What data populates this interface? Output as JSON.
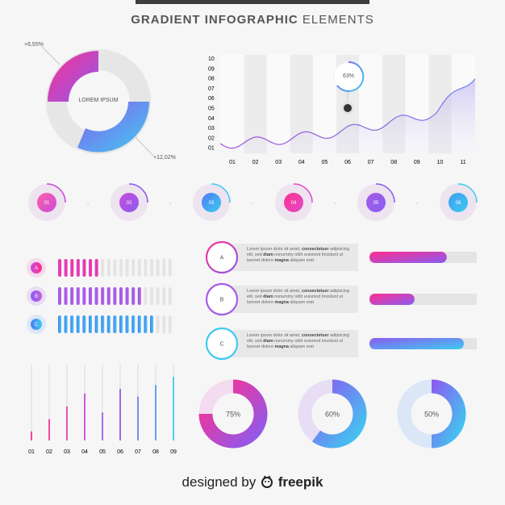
{
  "title": {
    "bold": "GRADIENT INFOGRAPHIC",
    "light": "ELEMENTS"
  },
  "donut": {
    "center_label": "LOREM IPSUM",
    "callout_top": "+6,55%",
    "callout_bottom": "+12,02%"
  },
  "area_chart": {
    "y_ticks": [
      "10",
      "09",
      "08",
      "07",
      "06",
      "05",
      "04",
      "03",
      "02",
      "01"
    ],
    "x_ticks": [
      "01",
      "02",
      "03",
      "04",
      "05",
      "06",
      "07",
      "08",
      "09",
      "10",
      "11"
    ],
    "bubble_label": "63%"
  },
  "steps": [
    "01",
    "02",
    "03",
    "04",
    "05",
    "06"
  ],
  "progress_rows": [
    {
      "label": "A",
      "filled": 7,
      "total": 19,
      "color_from": "#c84bd8",
      "color_to": "#ff2f8f"
    },
    {
      "label": "B",
      "filled": 14,
      "total": 19,
      "color_from": "#8a5cf0",
      "color_to": "#c85ce0"
    },
    {
      "label": "C",
      "filled": 16,
      "total": 19,
      "color_from": "#4d7cf2",
      "color_to": "#3ecbf0"
    }
  ],
  "info_items": [
    {
      "letter": "A",
      "line1_a": "Lorem ipsum dolor sit amet, ",
      "line1_b": "consectetuer",
      "line1_c": " adipiscing",
      "line2_a": "elit, sed ",
      "line2_b": "diam",
      "line2_c": " nonummy nibh euismod tincidunt ut",
      "line3_a": "laoreet dolore ",
      "line3_b": "magna",
      "line3_c": " aliquam erat",
      "bar_value": 0.72
    },
    {
      "letter": "B",
      "line1_a": "Lorem ipsum dolor sit amet, ",
      "line1_b": "consectetuer",
      "line1_c": " adipiscing",
      "line2_a": "elit, sed ",
      "line2_b": "diam",
      "line2_c": " nonummy nibh euismod tincidunt ut",
      "line3_a": "laoreet dolore ",
      "line3_b": "magna",
      "line3_c": " aliquam erat",
      "bar_value": 0.42
    },
    {
      "letter": "C",
      "line1_a": "Lorem ipsum dolor sit amet, ",
      "line1_b": "consectetuer",
      "line1_c": " adipiscing",
      "line2_a": "elit, sed ",
      "line2_b": "diam",
      "line2_c": " nonummy nibh euismod tincidunt ut",
      "line3_a": "laoreet dolore ",
      "line3_b": "magna",
      "line3_c": " aliquam erat",
      "bar_value": 0.88
    }
  ],
  "vertical_bars": {
    "labels": [
      "01",
      "02",
      "03",
      "04",
      "05",
      "06",
      "07",
      "08",
      "09"
    ],
    "values": [
      0.12,
      0.28,
      0.45,
      0.62,
      0.37,
      0.68,
      0.58,
      0.73,
      0.84
    ]
  },
  "rings": [
    {
      "label": "75%",
      "value": 0.75
    },
    {
      "label": "60%",
      "value": 0.6
    },
    {
      "label": "50%",
      "value": 0.5
    }
  ],
  "footer": {
    "prefix": "designed by",
    "brand": "freepik"
  }
}
